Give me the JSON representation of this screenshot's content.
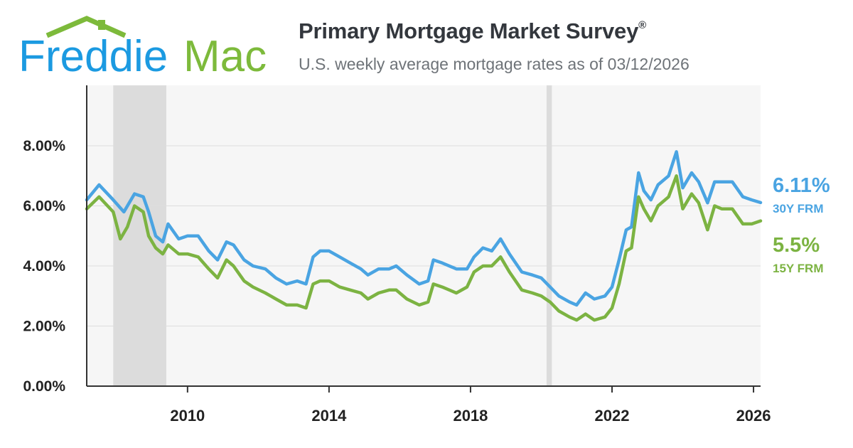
{
  "brand": {
    "logo_text_a": "Freddie",
    "logo_text_b": "Mac"
  },
  "header": {
    "title": "Primary Mortgage Market Survey",
    "title_mark": "®",
    "subtitle": "U.S. weekly average mortgage rates as of 03/12/2026"
  },
  "colors": {
    "series_30y": "#4aa4e2",
    "series_15y": "#7cb342",
    "logo_blue": "#1b9ae1",
    "logo_green": "#7dba3b"
  },
  "chart_data": {
    "type": "line",
    "title": "Primary Mortgage Market Survey",
    "subtitle": "U.S. weekly average mortgage rates as of 03/12/2026",
    "x_range": [
      2007.15,
      2026.2
    ],
    "ylim": [
      0,
      10
    ],
    "y_ticks": [
      0,
      2,
      4,
      6,
      8
    ],
    "y_tick_labels": [
      "0.00%",
      "2.00%",
      "4.00%",
      "6.00%",
      "8.00%"
    ],
    "x_ticks": [
      2010,
      2014,
      2018,
      2022,
      2026
    ],
    "x_tick_labels": [
      "2010",
      "2014",
      "2018",
      "2022",
      "2026"
    ],
    "grid": true,
    "shaded_periods": [
      [
        2007.9,
        2009.4
      ],
      [
        2020.15,
        2020.3
      ]
    ],
    "series": [
      {
        "name": "30Y FRM",
        "latest_label": "6.11%",
        "color": "#4aa4e2",
        "points": [
          [
            2007.15,
            6.2
          ],
          [
            2007.5,
            6.7
          ],
          [
            2007.9,
            6.2
          ],
          [
            2008.2,
            5.8
          ],
          [
            2008.5,
            6.4
          ],
          [
            2008.75,
            6.3
          ],
          [
            2008.9,
            5.8
          ],
          [
            2009.1,
            5.0
          ],
          [
            2009.3,
            4.8
          ],
          [
            2009.45,
            5.4
          ],
          [
            2009.75,
            4.9
          ],
          [
            2010.0,
            5.0
          ],
          [
            2010.3,
            5.0
          ],
          [
            2010.6,
            4.5
          ],
          [
            2010.85,
            4.2
          ],
          [
            2011.1,
            4.8
          ],
          [
            2011.3,
            4.7
          ],
          [
            2011.6,
            4.2
          ],
          [
            2011.85,
            4.0
          ],
          [
            2012.2,
            3.9
          ],
          [
            2012.5,
            3.6
          ],
          [
            2012.8,
            3.4
          ],
          [
            2013.1,
            3.5
          ],
          [
            2013.35,
            3.4
          ],
          [
            2013.55,
            4.3
          ],
          [
            2013.75,
            4.5
          ],
          [
            2014.0,
            4.5
          ],
          [
            2014.3,
            4.3
          ],
          [
            2014.6,
            4.1
          ],
          [
            2014.9,
            3.9
          ],
          [
            2015.1,
            3.7
          ],
          [
            2015.4,
            3.9
          ],
          [
            2015.7,
            3.9
          ],
          [
            2015.9,
            4.0
          ],
          [
            2016.2,
            3.7
          ],
          [
            2016.55,
            3.4
          ],
          [
            2016.8,
            3.5
          ],
          [
            2016.95,
            4.2
          ],
          [
            2017.2,
            4.1
          ],
          [
            2017.6,
            3.9
          ],
          [
            2017.9,
            3.9
          ],
          [
            2018.1,
            4.3
          ],
          [
            2018.35,
            4.6
          ],
          [
            2018.6,
            4.5
          ],
          [
            2018.85,
            4.9
          ],
          [
            2019.1,
            4.4
          ],
          [
            2019.45,
            3.8
          ],
          [
            2019.75,
            3.7
          ],
          [
            2020.0,
            3.6
          ],
          [
            2020.25,
            3.3
          ],
          [
            2020.5,
            3.0
          ],
          [
            2020.8,
            2.8
          ],
          [
            2021.0,
            2.7
          ],
          [
            2021.25,
            3.1
          ],
          [
            2021.5,
            2.9
          ],
          [
            2021.8,
            3.0
          ],
          [
            2022.0,
            3.3
          ],
          [
            2022.2,
            4.2
          ],
          [
            2022.4,
            5.2
          ],
          [
            2022.55,
            5.3
          ],
          [
            2022.75,
            7.1
          ],
          [
            2022.9,
            6.5
          ],
          [
            2023.1,
            6.2
          ],
          [
            2023.3,
            6.7
          ],
          [
            2023.6,
            7.0
          ],
          [
            2023.82,
            7.8
          ],
          [
            2024.0,
            6.6
          ],
          [
            2024.25,
            7.1
          ],
          [
            2024.45,
            6.8
          ],
          [
            2024.7,
            6.1
          ],
          [
            2024.9,
            6.8
          ],
          [
            2025.1,
            6.8
          ],
          [
            2025.4,
            6.8
          ],
          [
            2025.7,
            6.3
          ],
          [
            2025.95,
            6.2
          ],
          [
            2026.2,
            6.11
          ]
        ]
      },
      {
        "name": "15Y FRM",
        "latest_label": "5.5%",
        "color": "#7cb342",
        "points": [
          [
            2007.15,
            5.9
          ],
          [
            2007.5,
            6.3
          ],
          [
            2007.9,
            5.8
          ],
          [
            2008.1,
            4.9
          ],
          [
            2008.3,
            5.3
          ],
          [
            2008.5,
            6.0
          ],
          [
            2008.75,
            5.8
          ],
          [
            2008.9,
            5.0
          ],
          [
            2009.1,
            4.6
          ],
          [
            2009.3,
            4.4
          ],
          [
            2009.45,
            4.7
          ],
          [
            2009.75,
            4.4
          ],
          [
            2010.0,
            4.4
          ],
          [
            2010.3,
            4.3
          ],
          [
            2010.6,
            3.9
          ],
          [
            2010.85,
            3.6
          ],
          [
            2011.1,
            4.2
          ],
          [
            2011.3,
            4.0
          ],
          [
            2011.6,
            3.5
          ],
          [
            2011.85,
            3.3
          ],
          [
            2012.2,
            3.1
          ],
          [
            2012.5,
            2.9
          ],
          [
            2012.8,
            2.7
          ],
          [
            2013.1,
            2.7
          ],
          [
            2013.35,
            2.6
          ],
          [
            2013.55,
            3.4
          ],
          [
            2013.75,
            3.5
          ],
          [
            2014.0,
            3.5
          ],
          [
            2014.3,
            3.3
          ],
          [
            2014.6,
            3.2
          ],
          [
            2014.9,
            3.1
          ],
          [
            2015.1,
            2.9
          ],
          [
            2015.4,
            3.1
          ],
          [
            2015.7,
            3.2
          ],
          [
            2015.9,
            3.2
          ],
          [
            2016.2,
            2.9
          ],
          [
            2016.55,
            2.7
          ],
          [
            2016.8,
            2.8
          ],
          [
            2016.95,
            3.4
          ],
          [
            2017.2,
            3.3
          ],
          [
            2017.6,
            3.1
          ],
          [
            2017.9,
            3.3
          ],
          [
            2018.1,
            3.8
          ],
          [
            2018.35,
            4.0
          ],
          [
            2018.6,
            4.0
          ],
          [
            2018.85,
            4.3
          ],
          [
            2019.1,
            3.8
          ],
          [
            2019.45,
            3.2
          ],
          [
            2019.75,
            3.1
          ],
          [
            2020.0,
            3.0
          ],
          [
            2020.25,
            2.8
          ],
          [
            2020.5,
            2.5
          ],
          [
            2020.8,
            2.3
          ],
          [
            2021.0,
            2.2
          ],
          [
            2021.25,
            2.4
          ],
          [
            2021.5,
            2.2
          ],
          [
            2021.8,
            2.3
          ],
          [
            2022.0,
            2.6
          ],
          [
            2022.2,
            3.4
          ],
          [
            2022.4,
            4.5
          ],
          [
            2022.55,
            4.6
          ],
          [
            2022.75,
            6.3
          ],
          [
            2022.9,
            5.9
          ],
          [
            2023.1,
            5.5
          ],
          [
            2023.3,
            6.0
          ],
          [
            2023.6,
            6.3
          ],
          [
            2023.82,
            7.0
          ],
          [
            2024.0,
            5.9
          ],
          [
            2024.25,
            6.4
          ],
          [
            2024.45,
            6.1
          ],
          [
            2024.7,
            5.2
          ],
          [
            2024.9,
            6.0
          ],
          [
            2025.1,
            5.9
          ],
          [
            2025.4,
            5.9
          ],
          [
            2025.7,
            5.4
          ],
          [
            2025.95,
            5.4
          ],
          [
            2026.2,
            5.5
          ]
        ]
      }
    ]
  }
}
